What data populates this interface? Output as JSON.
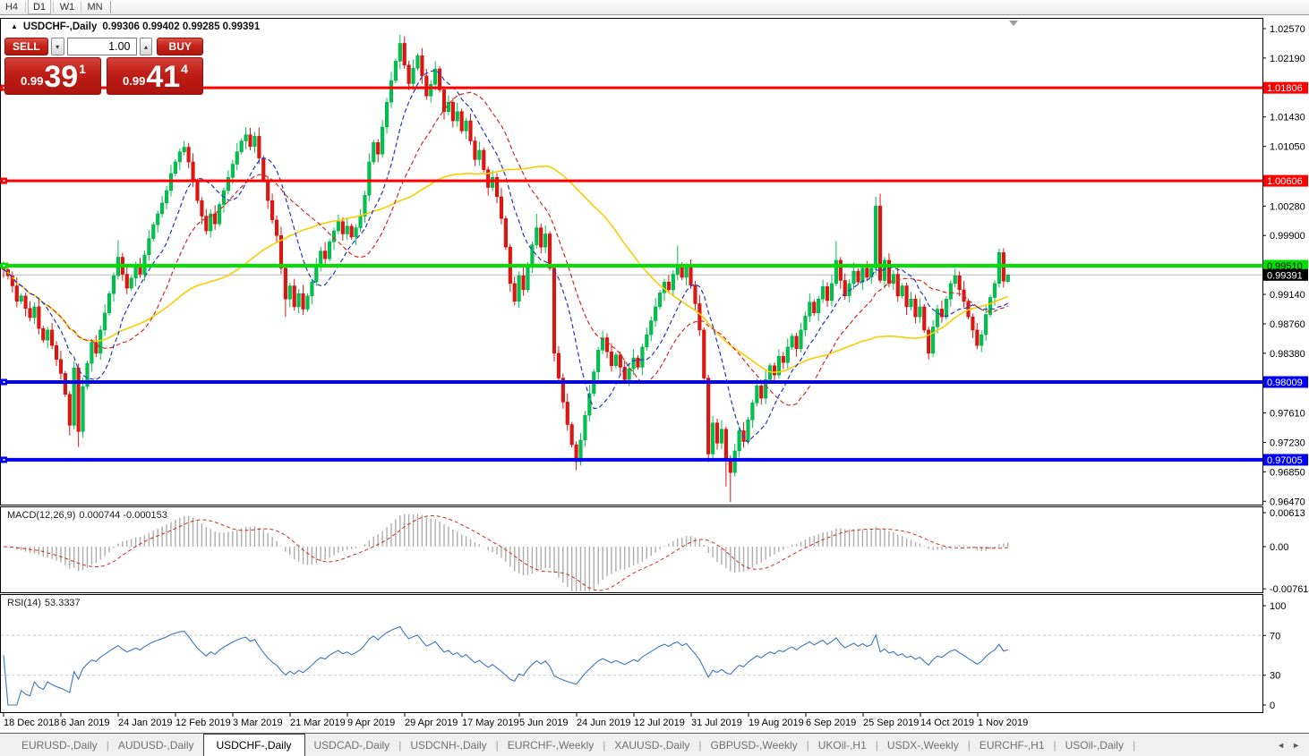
{
  "toolbar": {
    "timeframes": [
      "H4",
      "D1",
      "W1",
      "MN"
    ],
    "active": "D1"
  },
  "chart_header": {
    "collapse_icon": "▲",
    "symbol_label": "USDCHF-,Daily",
    "ohlc_text": "0.99306 0.99402 0.99285 0.99391"
  },
  "trade_panel": {
    "sell_label": "SELL",
    "buy_label": "BUY",
    "lot_value": "1.00",
    "spin_down_icon": "▾",
    "spin_up_icon": "▴",
    "sell_price_small": "0.99",
    "sell_price_big": "39",
    "sell_price_sup": "1",
    "buy_price_small": "0.99",
    "buy_price_big": "41",
    "buy_price_sup": "4"
  },
  "colors": {
    "bull": "#00C24E",
    "bull_border": "#00A83F",
    "bear": "#E1150F",
    "bear_border": "#C40E09",
    "ma_fast_blue": "#2335C8",
    "ma_mid_red": "#D02A22",
    "ma_slow_yellow": "#F7CE00",
    "hline_red": "#FE0000",
    "hline_green": "#00E100",
    "hline_blue": "#0000F4",
    "current_price_line": "#b8b8b8",
    "current_price_badge": "#000000",
    "macd_histogram": "#ADADAD",
    "macd_signal": "#D02A22",
    "rsi_line": "#3A76C4",
    "rsi_levels": "#c8c8c8",
    "axis_text": "#000000",
    "panel_border": "#000000"
  },
  "chart_data": {
    "type": "candlestick",
    "symbol": "USDCHF",
    "timeframe": "Daily",
    "x_tick_labels": [
      "18 Dec 2018",
      "6 Jan 2019",
      "24 Jan 2019",
      "12 Feb 2019",
      "3 Mar 2019",
      "21 Mar 2019",
      "9 Apr 2019",
      "29 Apr 2019",
      "17 May 2019",
      "5 Jun 2019",
      "24 Jun 2019",
      "12 Jul 2019",
      "31 Jul 2019",
      "19 Aug 2019",
      "6 Sep 2019",
      "25 Sep 2019",
      "14 Oct 2019",
      "1 Nov 2019"
    ],
    "y_tick_labels": [
      "1.02570",
      "1.02190",
      "1.01430",
      "1.01050",
      "1.00280",
      "0.99900",
      "0.99140",
      "0.98760",
      "0.98380",
      "0.97610",
      "0.97230",
      "0.96850",
      "0.96470"
    ],
    "y_range_shown": [
      0.9647,
      1.0257
    ],
    "first_open": 0.9952,
    "closes": [
      0.9946,
      0.9938,
      0.9925,
      0.9905,
      0.9912,
      0.9896,
      0.9884,
      0.9898,
      0.987,
      0.9855,
      0.9868,
      0.9848,
      0.983,
      0.9812,
      0.9785,
      0.9745,
      0.9819,
      0.9737,
      0.9795,
      0.9825,
      0.9852,
      0.9838,
      0.9868,
      0.989,
      0.9915,
      0.9938,
      0.9962,
      0.994,
      0.9922,
      0.9935,
      0.9952,
      0.994,
      0.9965,
      0.9986,
      1.0004,
      1.0018,
      1.0032,
      1.0048,
      1.007,
      1.0085,
      1.0098,
      1.0104,
      1.0085,
      1.006,
      1.0035,
      1.0015,
      0.9996,
      1.0018,
      1.0005,
      1.003,
      1.0048,
      1.0065,
      1.0082,
      1.0098,
      1.0112,
      1.012,
      1.0105,
      1.0118,
      1.009,
      1.0062,
      1.0035,
      1.001,
      0.999,
      0.9948,
      0.9908,
      0.9925,
      0.9898,
      0.9915,
      0.9895,
      0.9912,
      0.993,
      0.9952,
      0.997,
      0.996,
      0.9982,
      0.9996,
      1.0008,
      0.9992,
      1.0002,
      0.9988,
      1.0,
      1.0015,
      1.0042,
      1.0085,
      1.011,
      1.0095,
      1.013,
      1.0162,
      1.019,
      1.0215,
      1.0238,
      1.021,
      1.0186,
      1.0206,
      1.0222,
      1.0196,
      1.017,
      1.0185,
      1.0205,
      1.0178,
      1.015,
      1.0162,
      1.0138,
      1.015,
      1.0125,
      1.0138,
      1.0112,
      1.0088,
      1.01,
      1.0075,
      1.0052,
      1.0065,
      1.004,
      1.0012,
      0.9975,
      0.9928,
      0.9905,
      0.9938,
      0.992,
      0.9952,
      0.9978,
      1.0,
      0.9975,
      0.9992,
      0.9948,
      0.9838,
      0.9806,
      0.9775,
      0.9746,
      0.972,
      0.9698,
      0.9726,
      0.9758,
      0.9786,
      0.9814,
      0.9842,
      0.9858,
      0.984,
      0.9822,
      0.9836,
      0.982,
      0.9804,
      0.9818,
      0.9832,
      0.982,
      0.9846,
      0.9862,
      0.988,
      0.9898,
      0.9916,
      0.993,
      0.992,
      0.994,
      0.9952,
      0.9936,
      0.995,
      0.9926,
      0.9902,
      0.9868,
      0.9806,
      0.9708,
      0.9748,
      0.9722,
      0.974,
      0.9702,
      0.9684,
      0.9712,
      0.9738,
      0.9724,
      0.9752,
      0.9774,
      0.9796,
      0.978,
      0.9804,
      0.9822,
      0.981,
      0.9834,
      0.9826,
      0.9846,
      0.986,
      0.9844,
      0.9868,
      0.9886,
      0.9904,
      0.989,
      0.9908,
      0.9924,
      0.9906,
      0.9928,
      0.9958,
      0.9932,
      0.9912,
      0.9928,
      0.9944,
      0.993,
      0.9948,
      0.9936,
      0.9948,
      1.0028,
      0.9932,
      0.9958,
      0.9928,
      0.994,
      0.9912,
      0.9925,
      0.9898,
      0.9908,
      0.9885,
      0.9898,
      0.9868,
      0.9838,
      0.9872,
      0.9895,
      0.9885,
      0.9908,
      0.9928,
      0.9938,
      0.992,
      0.9905,
      0.9885,
      0.9868,
      0.9848,
      0.9862,
      0.9888,
      0.991,
      0.9928,
      0.9968,
      0.9931,
      0.99391
    ],
    "wick_overrides": {
      "15": [
        null,
        0.9732
      ],
      "17": [
        null,
        0.9717
      ],
      "26": [
        0.9984,
        null
      ],
      "41": [
        1.0112,
        null
      ],
      "55": [
        1.013,
        null
      ],
      "64": [
        null,
        0.9885
      ],
      "90": [
        1.0249,
        null
      ],
      "95": [
        1.0232,
        null
      ],
      "98": [
        1.0215,
        null
      ],
      "121": [
        1.0018,
        null
      ],
      "130": [
        null,
        0.9687
      ],
      "153": [
        0.9977,
        null
      ],
      "164": [
        null,
        0.9666
      ],
      "165": [
        null,
        0.9646
      ],
      "189": [
        0.9983,
        null
      ],
      "198": [
        1.004,
        null
      ],
      "199": [
        1.0044,
        null
      ],
      "210": [
        null,
        0.983
      ],
      "226": [
        0.9973,
        null
      ]
    },
    "last_candle": {
      "open": 0.99306,
      "high": 0.99402,
      "low": 0.99285,
      "close": 0.99391
    },
    "current_price": {
      "value": 0.99391,
      "label": "0.99391"
    },
    "hlines": [
      {
        "value": 1.01806,
        "label": "1.01806",
        "color": "#FE0000",
        "thickness": 3,
        "label_text": "#ffffff"
      },
      {
        "value": 1.00606,
        "label": "1.00606",
        "color": "#FE0000",
        "thickness": 3,
        "label_text": "#ffffff"
      },
      {
        "value": 0.9951,
        "label": "0.99510",
        "color": "#00E100",
        "thickness": 4,
        "label_text": "#000000"
      },
      {
        "value": 0.98009,
        "label": "0.98009",
        "color": "#0000F4",
        "thickness": 4,
        "label_text": "#ffffff"
      },
      {
        "value": 0.97005,
        "label": "0.97005",
        "color": "#0000F4",
        "thickness": 4,
        "label_text": "#ffffff"
      }
    ],
    "moving_averages": [
      {
        "name": "fast",
        "period": 10,
        "style": "dashed",
        "color_key": "ma_fast_blue"
      },
      {
        "name": "mid",
        "period": 21,
        "style": "dashed",
        "color_key": "ma_mid_red"
      },
      {
        "name": "slow",
        "period": 50,
        "style": "solid",
        "color_key": "ma_slow_yellow"
      }
    ],
    "indicators": [
      {
        "name_params": "MACD(12,26,9)",
        "values_text": "0.000744 -0.000153",
        "y_ticks": [
          {
            "label": "0.00613",
            "v": 0.00613
          },
          {
            "label": "0.00",
            "v": 0
          },
          {
            "label": "-0.007612",
            "v": -0.007612
          }
        ]
      },
      {
        "name_params": "RSI(14)",
        "values_text": "53.3337",
        "y_ticks": [
          {
            "label": "100",
            "v": 100
          },
          {
            "label": "70",
            "v": 70
          },
          {
            "label": "30",
            "v": 30
          },
          {
            "label": "0",
            "v": 0
          }
        ],
        "levels": [
          70,
          30
        ]
      }
    ]
  },
  "tabs": {
    "items": [
      "EURUSD-,Daily",
      "AUDUSD-,Daily",
      "USDCHF-,Daily",
      "USDCAD-,Daily",
      "USDCNH-,Daily",
      "EURCHF-,Weekly",
      "XAUUSD-,Daily",
      "GBPUSD-,Weekly",
      "UKOil-,H1",
      "USDX-,Weekly",
      "EURCHF-,H1",
      "USOil-,Daily"
    ],
    "active": "USDCHF-,Daily",
    "scroll_left": "◄",
    "scroll_right": "►"
  }
}
